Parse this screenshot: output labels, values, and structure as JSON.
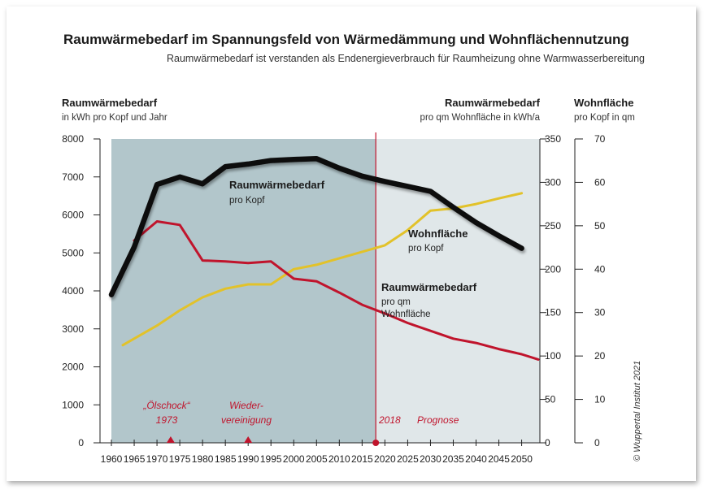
{
  "title": "Raumwärmebedarf  im Spannungsfeld von Wärmedämmung und Wohnflächennutzung",
  "subtitle": "Raumwärmebedarf ist verstanden als Endenergieverbrauch für Raumheizung ohne Warmwasserbereitung",
  "axes": {
    "left": {
      "title": "Raumwärmebedarf",
      "unit": "in kWh pro Kopf und Jahr"
    },
    "right1": {
      "title": "Raumwärmebedarf",
      "unit": "pro qm Wohnfläche in kWh/a"
    },
    "right2": {
      "title": "Wohnfläche",
      "unit": "pro Kopf in qm"
    }
  },
  "labels": {
    "per_capita_title": "Raumwärmebedarf",
    "per_capita_sub": "pro Kopf",
    "area_title": "Wohnfläche",
    "area_sub": "pro Kopf",
    "per_sqm_title": "Raumwärmebedarf",
    "per_sqm_sub1": "pro qm",
    "per_sqm_sub2": "Wohnfläche"
  },
  "events": {
    "oil1": "„Ölschock“",
    "oil2": "1973",
    "reun1": "Wieder-",
    "reun2": "vereinigung",
    "year2018": "2018",
    "forecast": "Prognose"
  },
  "copyright": "© Wuppertal Institut 2021",
  "colors": {
    "history_bg": "#b2c6cb",
    "forecast_bg": "#e0e7e9",
    "per_capita": "#111111",
    "per_sqm": "#c0142c",
    "area": "#e2c22a",
    "marker": "#c0142c"
  },
  "chart_data": {
    "type": "line",
    "x_ticks": [
      1960,
      1965,
      1970,
      1975,
      1980,
      1985,
      1990,
      1995,
      2000,
      2005,
      2010,
      2015,
      2020,
      2025,
      2030,
      2035,
      2040,
      2045,
      2050
    ],
    "xlim": [
      1957.5,
      2054
    ],
    "history_range": [
      1957.5,
      2018
    ],
    "forecast_range": [
      2018,
      2054
    ],
    "y_left": {
      "ticks": [
        0,
        1000,
        2000,
        3000,
        4000,
        5000,
        6000,
        7000,
        8000
      ],
      "lim": [
        0,
        8000
      ],
      "unit": "kWh pro Kopf und Jahr"
    },
    "y_right1": {
      "ticks": [
        0,
        50,
        100,
        150,
        200,
        250,
        300,
        350
      ],
      "lim": [
        0,
        350
      ],
      "unit": "kWh/a pro qm"
    },
    "y_right2": {
      "ticks": [
        0,
        10,
        20,
        30,
        40,
        50,
        60,
        70
      ],
      "lim": [
        0,
        70
      ],
      "unit": "qm pro Kopf"
    },
    "series": [
      {
        "name": "Raumwärmebedarf pro Kopf",
        "axis": "left",
        "x": [
          1960,
          1965,
          1970,
          1975,
          1980,
          1985,
          1990,
          1995,
          2000,
          2005,
          2010,
          2015,
          2020,
          2025,
          2030,
          2035,
          2040,
          2045,
          2050
        ],
        "y": [
          3900,
          5150,
          6800,
          7000,
          6820,
          7270,
          7340,
          7430,
          7460,
          7480,
          7230,
          7020,
          6880,
          6750,
          6620,
          6200,
          5800,
          5450,
          5120
        ]
      },
      {
        "name": "Raumwärmebedarf pro qm Wohnfläche",
        "axis": "right1",
        "x": [
          1965,
          1970,
          1975,
          1980,
          1985,
          1990,
          1995,
          2000,
          2005,
          2010,
          2015,
          2020,
          2025,
          2030,
          2035,
          2040,
          2045,
          2050,
          2055
        ],
        "y": [
          233,
          255,
          251,
          210,
          209,
          207,
          209,
          189,
          186,
          173,
          159,
          149,
          138,
          129,
          120,
          115,
          108,
          102,
          96
        ]
      },
      {
        "name": "Wohnfläche pro Kopf",
        "axis": "right2",
        "x": [
          1962.5,
          1970,
          1975,
          1980,
          1985,
          1990,
          1995,
          2000,
          2005,
          2010,
          2015,
          2020,
          2025,
          2030,
          2035,
          2040,
          2045,
          2050
        ],
        "y": [
          22.5,
          27,
          30.5,
          33.5,
          35.5,
          36.5,
          36.5,
          40,
          41,
          42.5,
          44,
          45.5,
          49,
          53.5,
          54,
          55,
          56.3,
          57.5
        ]
      }
    ],
    "markers": [
      {
        "x": 1973,
        "shape": "triangle"
      },
      {
        "x": 1990,
        "shape": "triangle"
      },
      {
        "x": 2018,
        "shape": "circle"
      }
    ]
  }
}
